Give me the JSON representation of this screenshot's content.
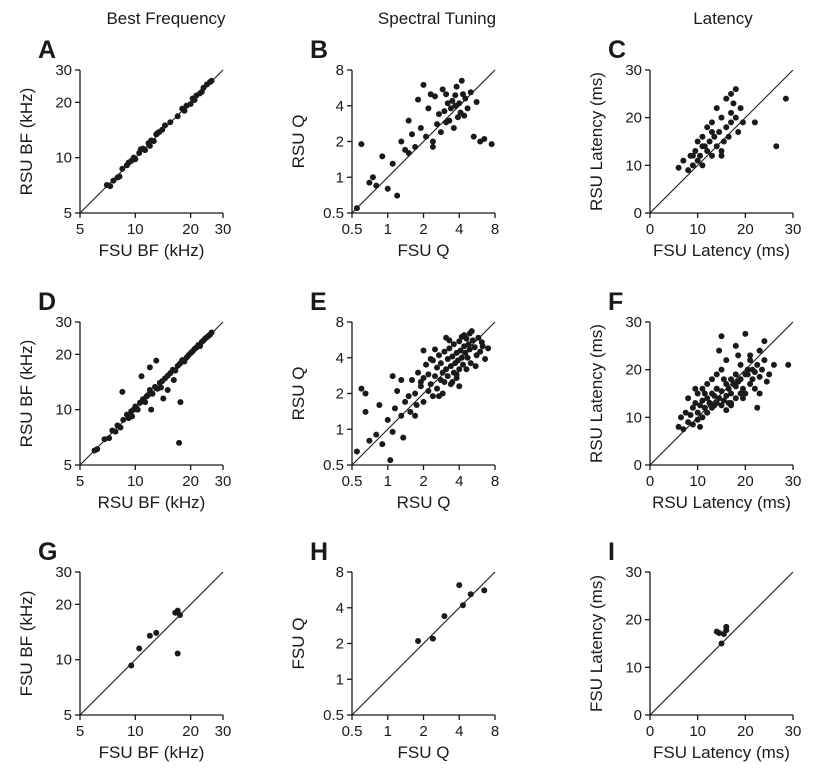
{
  "column_titles": [
    "Best Frequency",
    "Spectral Tuning",
    "Latency"
  ],
  "chart_data": [
    {
      "panel": "A",
      "type": "scatter",
      "scale": "log",
      "xlabel": "FSU BF (kHz)",
      "ylabel": "RSU BF (kHz)",
      "xlim": [
        5,
        30
      ],
      "ylim": [
        5,
        30
      ],
      "xticks": [
        5,
        10,
        20,
        30
      ],
      "yticks": [
        5,
        10,
        20,
        30
      ],
      "unity_line": true,
      "x": [
        7.0,
        7.3,
        7.6,
        8.0,
        8.5,
        9.0,
        9.2,
        9.5,
        9.8,
        10.0,
        10.5,
        11.0,
        11.3,
        11.8,
        12.2,
        12.6,
        13.0,
        13.5,
        14.0,
        14.5,
        15.5,
        17.0,
        18.0,
        19.0,
        20.0,
        20.5,
        21.5,
        22.5,
        23.5,
        24.5,
        25.5,
        26.0,
        8.2,
        10.7,
        12.0,
        13.2,
        18.5,
        21.0,
        23.0
      ],
      "y": [
        7.1,
        7.0,
        7.5,
        7.8,
        8.7,
        9.1,
        9.4,
        9.6,
        10.0,
        9.8,
        10.6,
        11.2,
        11.0,
        12.0,
        12.4,
        12.3,
        13.4,
        13.8,
        14.2,
        15.0,
        15.6,
        16.8,
        18.5,
        19.2,
        19.6,
        21.0,
        21.8,
        22.4,
        24.0,
        25.0,
        25.8,
        26.2,
        7.9,
        11.1,
        11.6,
        13.6,
        18.0,
        20.6,
        22.8
      ]
    },
    {
      "panel": "B",
      "type": "scatter",
      "scale": "log",
      "xlabel": "FSU Q",
      "ylabel": "RSU Q",
      "xlim": [
        0.5,
        8
      ],
      "ylim": [
        0.5,
        8
      ],
      "xticks": [
        0.5,
        1,
        2,
        4,
        8
      ],
      "yticks": [
        0.5,
        1,
        2,
        4,
        8
      ],
      "unity_line": true,
      "x": [
        0.55,
        0.6,
        0.7,
        0.75,
        0.8,
        0.9,
        1.0,
        1.1,
        1.2,
        1.3,
        1.4,
        1.5,
        1.6,
        1.7,
        1.8,
        1.9,
        2.0,
        2.1,
        2.2,
        2.3,
        2.4,
        2.5,
        2.6,
        2.7,
        2.8,
        2.9,
        3.0,
        3.1,
        3.2,
        3.3,
        3.4,
        3.5,
        3.6,
        3.7,
        3.8,
        3.9,
        4.0,
        4.1,
        4.2,
        4.3,
        4.5,
        4.7,
        5.0,
        5.3,
        5.6,
        6.0,
        6.5,
        7.5,
        1.5,
        2.4,
        3.1,
        3.7,
        4.4
      ],
      "y": [
        0.55,
        1.9,
        0.9,
        1.0,
        0.85,
        1.5,
        0.8,
        1.3,
        0.7,
        2.0,
        1.7,
        3.0,
        2.3,
        1.8,
        4.5,
        2.6,
        6.0,
        2.2,
        3.8,
        5.0,
        1.8,
        4.8,
        2.8,
        3.4,
        2.4,
        5.5,
        3.6,
        2.9,
        4.2,
        3.0,
        3.8,
        4.4,
        2.6,
        4.0,
        5.8,
        3.2,
        4.2,
        3.5,
        6.5,
        5.0,
        4.6,
        3.8,
        5.2,
        2.2,
        4.3,
        2.0,
        2.1,
        1.9,
        1.6,
        2.0,
        5.0,
        4.9,
        3.3
      ]
    },
    {
      "panel": "C",
      "type": "scatter",
      "scale": "linear",
      "xlabel": "FSU Latency (ms)",
      "ylabel": "RSU Latency (ms)",
      "xlim": [
        0,
        30
      ],
      "ylim": [
        0,
        30
      ],
      "xticks": [
        0,
        10,
        20,
        30
      ],
      "yticks": [
        0,
        10,
        20,
        30
      ],
      "unity_line": true,
      "x": [
        6,
        7,
        8,
        8.5,
        9,
        9.5,
        10,
        10,
        10.5,
        11,
        11,
        11.5,
        12,
        12,
        12.5,
        13,
        13,
        13.5,
        14,
        14,
        14.5,
        15,
        15,
        15.5,
        16,
        16,
        16.5,
        17,
        17,
        17.5,
        18,
        18,
        18.5,
        19,
        19.5,
        22,
        26.5,
        28.5,
        9,
        11,
        13,
        15,
        17
      ],
      "y": [
        9.5,
        11,
        9,
        12,
        10,
        13,
        11,
        15,
        12,
        10,
        16,
        14,
        13,
        18,
        15,
        12,
        19,
        16,
        14,
        22,
        17,
        13,
        20,
        15,
        18,
        24,
        16,
        21,
        19,
        23,
        20,
        26,
        17,
        22,
        19,
        19,
        14,
        24,
        12,
        14,
        17,
        12,
        25
      ]
    },
    {
      "panel": "D",
      "type": "scatter",
      "scale": "log",
      "xlabel": "RSU BF (kHz)",
      "ylabel": "RSU BF (kHz)",
      "xlim": [
        5,
        30
      ],
      "ylim": [
        5,
        30
      ],
      "xticks": [
        5,
        10,
        20,
        30
      ],
      "yticks": [
        5,
        10,
        20,
        30
      ],
      "unity_line": true,
      "x": [
        6.0,
        6.2,
        6.8,
        7.2,
        7.5,
        7.8,
        8.0,
        8.3,
        8.6,
        9.0,
        9.2,
        9.5,
        9.8,
        10.0,
        10.3,
        10.6,
        11.0,
        11.3,
        11.7,
        12.0,
        12.4,
        12.8,
        13.2,
        13.6,
        14.0,
        14.5,
        15.0,
        15.5,
        16.0,
        16.5,
        17.0,
        17.5,
        18.0,
        18.5,
        19.0,
        19.5,
        20.0,
        20.5,
        21.0,
        21.5,
        22.0,
        22.5,
        23.0,
        23.5,
        24.0,
        24.5,
        25.0,
        25.5,
        26.0,
        8.5,
        10.8,
        12.2,
        13.0,
        14.2,
        16.2,
        17.6,
        12.0,
        15.0,
        17.3,
        9.6,
        11.5,
        13.8
      ],
      "y": [
        6.0,
        6.1,
        6.9,
        7.0,
        7.7,
        7.6,
        8.2,
        8.0,
        8.8,
        9.4,
        9.0,
        9.8,
        10.0,
        10.4,
        10.0,
        10.9,
        11.4,
        11.0,
        12.0,
        12.8,
        12.2,
        13.3,
        13.0,
        14.0,
        14.3,
        14.8,
        15.3,
        15.8,
        16.5,
        16.3,
        17.3,
        17.8,
        18.6,
        18.3,
        19.2,
        19.8,
        20.3,
        20.8,
        21.4,
        21.8,
        22.5,
        22.2,
        23.4,
        23.8,
        24.4,
        24.8,
        25.2,
        25.6,
        26.3,
        12.5,
        15.2,
        10.0,
        18.5,
        11.5,
        14.5,
        11.0,
        17.0,
        12.8,
        6.6,
        9.2,
        11.8,
        13.2
      ]
    },
    {
      "panel": "E",
      "type": "scatter",
      "scale": "log",
      "xlabel": "RSU Q",
      "ylabel": "RSU Q",
      "xlim": [
        0.5,
        8
      ],
      "ylim": [
        0.5,
        8
      ],
      "xticks": [
        0.5,
        1,
        2,
        4,
        8
      ],
      "yticks": [
        0.5,
        1,
        2,
        4,
        8
      ],
      "unity_line": true,
      "x": [
        0.55,
        0.6,
        0.65,
        0.7,
        0.8,
        0.85,
        0.9,
        1.0,
        1.05,
        1.1,
        1.15,
        1.2,
        1.3,
        1.35,
        1.4,
        1.5,
        1.55,
        1.6,
        1.7,
        1.75,
        1.8,
        1.9,
        2.0,
        2.0,
        2.1,
        2.2,
        2.2,
        2.3,
        2.4,
        2.4,
        2.5,
        2.6,
        2.6,
        2.7,
        2.8,
        2.8,
        2.9,
        3.0,
        3.0,
        3.1,
        3.2,
        3.2,
        3.3,
        3.4,
        3.4,
        3.5,
        3.6,
        3.6,
        3.7,
        3.8,
        3.8,
        3.9,
        4.0,
        4.0,
        4.1,
        4.2,
        4.2,
        4.3,
        4.4,
        4.5,
        4.6,
        4.7,
        4.8,
        4.9,
        5.0,
        5.2,
        5.4,
        5.6,
        5.8,
        6.0,
        6.3,
        6.6,
        7.0,
        1.3,
        1.7,
        2.3,
        2.9,
        3.5,
        4.4,
        5.5,
        2.0,
        2.7,
        3.3,
        4.0,
        4.9,
        6.2,
        1.9,
        2.5,
        3.1,
        3.8,
        4.6,
        5.1,
        1.1,
        0.65
      ],
      "y": [
        0.65,
        2.2,
        1.4,
        0.8,
        0.9,
        1.6,
        0.75,
        1.2,
        0.55,
        0.95,
        1.5,
        2.1,
        1.3,
        0.85,
        1.7,
        1.9,
        1.4,
        2.6,
        2.0,
        1.6,
        3.0,
        2.3,
        2.7,
        1.7,
        3.5,
        2.1,
        2.9,
        2.4,
        3.8,
        1.9,
        2.8,
        3.3,
        2.2,
        4.2,
        2.6,
        3.6,
        3.0,
        4.5,
        2.5,
        3.2,
        3.9,
        2.8,
        4.8,
        3.4,
        2.4,
        4.1,
        3.0,
        5.2,
        3.6,
        4.4,
        2.7,
        3.8,
        5.5,
        3.2,
        4.6,
        4.0,
        6.0,
        3.5,
        5.0,
        4.4,
        5.8,
        4.0,
        5.2,
        4.7,
        3.6,
        5.6,
        4.9,
        4.2,
        5.9,
        4.5,
        5.0,
        3.9,
        4.8,
        2.6,
        1.3,
        3.9,
        2.0,
        2.5,
        6.2,
        3.4,
        4.6,
        1.9,
        5.6,
        2.3,
        6.4,
        5.4,
        2.5,
        4.7,
        5.9,
        2.9,
        3.2,
        6.7,
        2.8,
        2.0
      ]
    },
    {
      "panel": "F",
      "type": "scatter",
      "scale": "linear",
      "xlabel": "RSU Latency (ms)",
      "ylabel": "RSU Latency (ms)",
      "xlim": [
        0,
        30
      ],
      "ylim": [
        0,
        30
      ],
      "xticks": [
        0,
        10,
        20,
        30
      ],
      "yticks": [
        0,
        10,
        20,
        30
      ],
      "unity_line": true,
      "x": [
        6,
        6.5,
        7,
        7.5,
        8,
        8,
        8.5,
        9,
        9,
        9.5,
        10,
        10,
        10,
        10.5,
        11,
        11,
        11,
        11.5,
        12,
        12,
        12,
        12.5,
        13,
        13,
        13,
        13.5,
        14,
        14,
        14,
        14.5,
        15,
        15,
        15,
        15.5,
        16,
        16,
        16,
        16.5,
        17,
        17,
        17,
        17.5,
        18,
        18,
        18,
        18.5,
        19,
        19,
        19.5,
        20,
        20,
        20.5,
        21,
        21,
        21.5,
        22,
        22,
        22.5,
        23,
        23,
        23.5,
        24,
        24.5,
        25,
        26,
        29,
        12,
        13.5,
        15,
        16.5,
        18,
        19.5,
        21,
        12.5,
        14.5,
        16,
        17.5,
        19,
        20.5,
        22.5,
        24,
        11.5,
        13,
        14,
        15.5,
        17,
        18.5,
        20,
        21.5,
        23,
        10.5,
        9.5
      ],
      "y": [
        8,
        10,
        7.5,
        11,
        9,
        14,
        10.5,
        12,
        8.5,
        13,
        11,
        15,
        9.5,
        12.5,
        13.5,
        10,
        16,
        12,
        14,
        11,
        17,
        13,
        15,
        12,
        18,
        14.5,
        13,
        16,
        19,
        14,
        15.5,
        12.5,
        20,
        13.5,
        17,
        14.5,
        22,
        16,
        15,
        18,
        13,
        17,
        16.5,
        19,
        14,
        17.5,
        18,
        21,
        16,
        19,
        15,
        20,
        17,
        23,
        18,
        19.5,
        16,
        21,
        18.5,
        24,
        20,
        22,
        17.5,
        19,
        21,
        21,
        11,
        12.5,
        27,
        13,
        25,
        14,
        22,
        13,
        24,
        11.5,
        17,
        15,
        19,
        12,
        26,
        15,
        12.5,
        16,
        18,
        12.5,
        23,
        27.5,
        20,
        15,
        8,
        16
      ],
      "note": "dense cloud"
    },
    {
      "panel": "G",
      "type": "scatter",
      "scale": "log",
      "xlabel": "FSU BF (kHz)",
      "ylabel": "FSU BF (kHz)",
      "xlim": [
        5,
        30
      ],
      "ylim": [
        5,
        30
      ],
      "xticks": [
        5,
        10,
        20,
        30
      ],
      "yticks": [
        5,
        10,
        20,
        30
      ],
      "unity_line": true,
      "x": [
        9.5,
        10.5,
        12.0,
        13.0,
        16.5,
        17.0,
        17.5,
        17.0
      ],
      "y": [
        9.3,
        11.5,
        13.5,
        14.0,
        18.0,
        18.5,
        17.5,
        10.8
      ]
    },
    {
      "panel": "H",
      "type": "scatter",
      "scale": "log",
      "xlabel": "FSU Q",
      "ylabel": "FSU Q",
      "xlim": [
        0.5,
        8
      ],
      "ylim": [
        0.5,
        8
      ],
      "xticks": [
        0.5,
        1,
        2,
        4,
        8
      ],
      "yticks": [
        0.5,
        1,
        2,
        4,
        8
      ],
      "unity_line": true,
      "x": [
        1.8,
        2.4,
        3.0,
        4.0,
        4.3,
        5.0,
        6.5
      ],
      "y": [
        2.1,
        2.2,
        3.4,
        6.2,
        4.2,
        5.2,
        5.6
      ]
    },
    {
      "panel": "I",
      "type": "scatter",
      "scale": "linear",
      "xlabel": "FSU Latency (ms)",
      "ylabel": "FSU Latency (ms)",
      "xlim": [
        0,
        30
      ],
      "ylim": [
        0,
        30
      ],
      "xticks": [
        0,
        10,
        20,
        30
      ],
      "yticks": [
        0,
        10,
        20,
        30
      ],
      "unity_line": true,
      "x": [
        14,
        14.5,
        15,
        15.5,
        16,
        16
      ],
      "y": [
        17.5,
        17.2,
        15,
        17,
        18.5,
        17.8
      ]
    }
  ]
}
